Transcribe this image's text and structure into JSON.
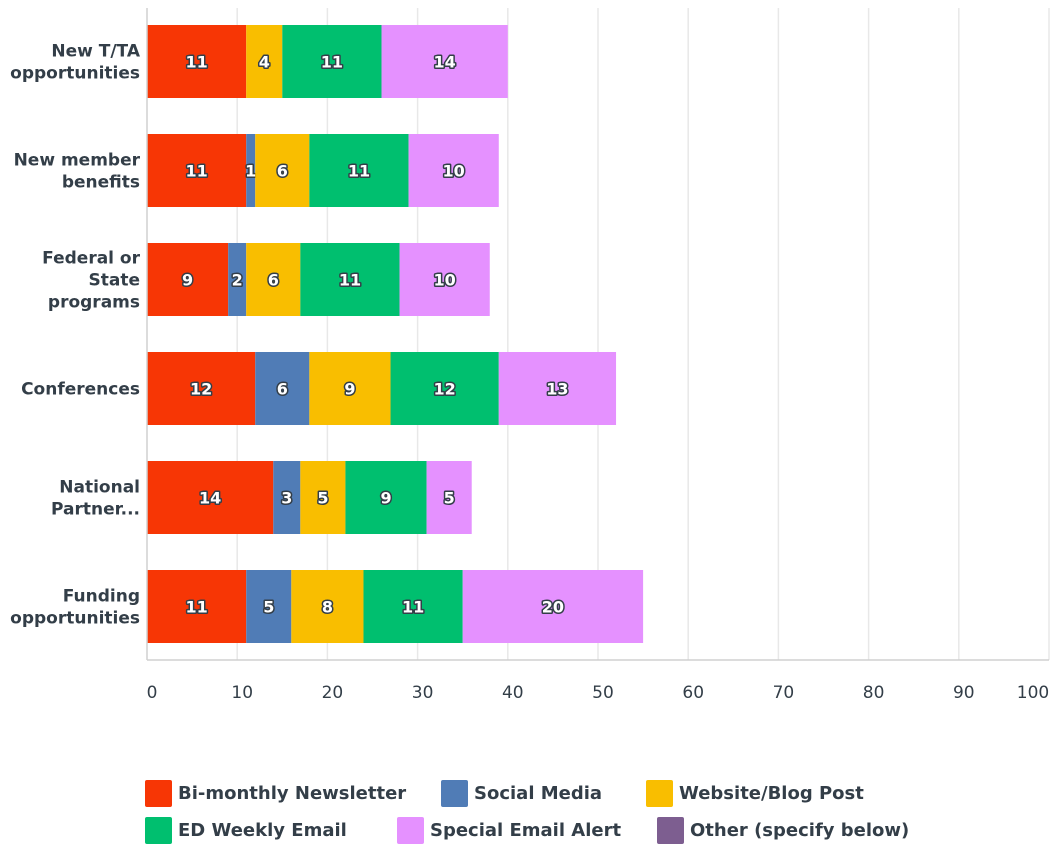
{
  "chart_data": {
    "type": "bar",
    "orientation": "horizontal",
    "stacked": true,
    "categories": [
      [
        "New T/TA",
        "opportunities"
      ],
      [
        "New member",
        "benefits"
      ],
      [
        "Federal or",
        "State",
        "programs"
      ],
      [
        "Conferences"
      ],
      [
        "National",
        "Partner..."
      ],
      [
        "Funding",
        "opportunities"
      ]
    ],
    "series": [
      {
        "name": "Bi-monthly Newsletter",
        "color": "#f73605",
        "values": [
          11,
          11,
          9,
          12,
          14,
          11
        ]
      },
      {
        "name": "Social Media",
        "color": "#507cb6",
        "values": [
          0,
          1,
          2,
          6,
          3,
          5
        ]
      },
      {
        "name": "Website/Blog Post",
        "color": "#f9be00",
        "values": [
          4,
          6,
          6,
          9,
          5,
          8
        ]
      },
      {
        "name": "ED Weekly Email",
        "color": "#00bf6f",
        "values": [
          11,
          11,
          11,
          12,
          9,
          11
        ]
      },
      {
        "name": "Special Email Alert",
        "color": "#e591ff",
        "values": [
          14,
          10,
          10,
          13,
          5,
          20
        ]
      },
      {
        "name": "Other (specify below)",
        "color": "#7d5e90",
        "values": [
          0,
          0,
          0,
          0,
          0,
          0
        ]
      }
    ],
    "xlim": [
      0,
      100
    ],
    "xticks": [
      0,
      10,
      20,
      30,
      40,
      50,
      60,
      70,
      80,
      90,
      100
    ],
    "grid": true,
    "legend_position": "bottom"
  }
}
